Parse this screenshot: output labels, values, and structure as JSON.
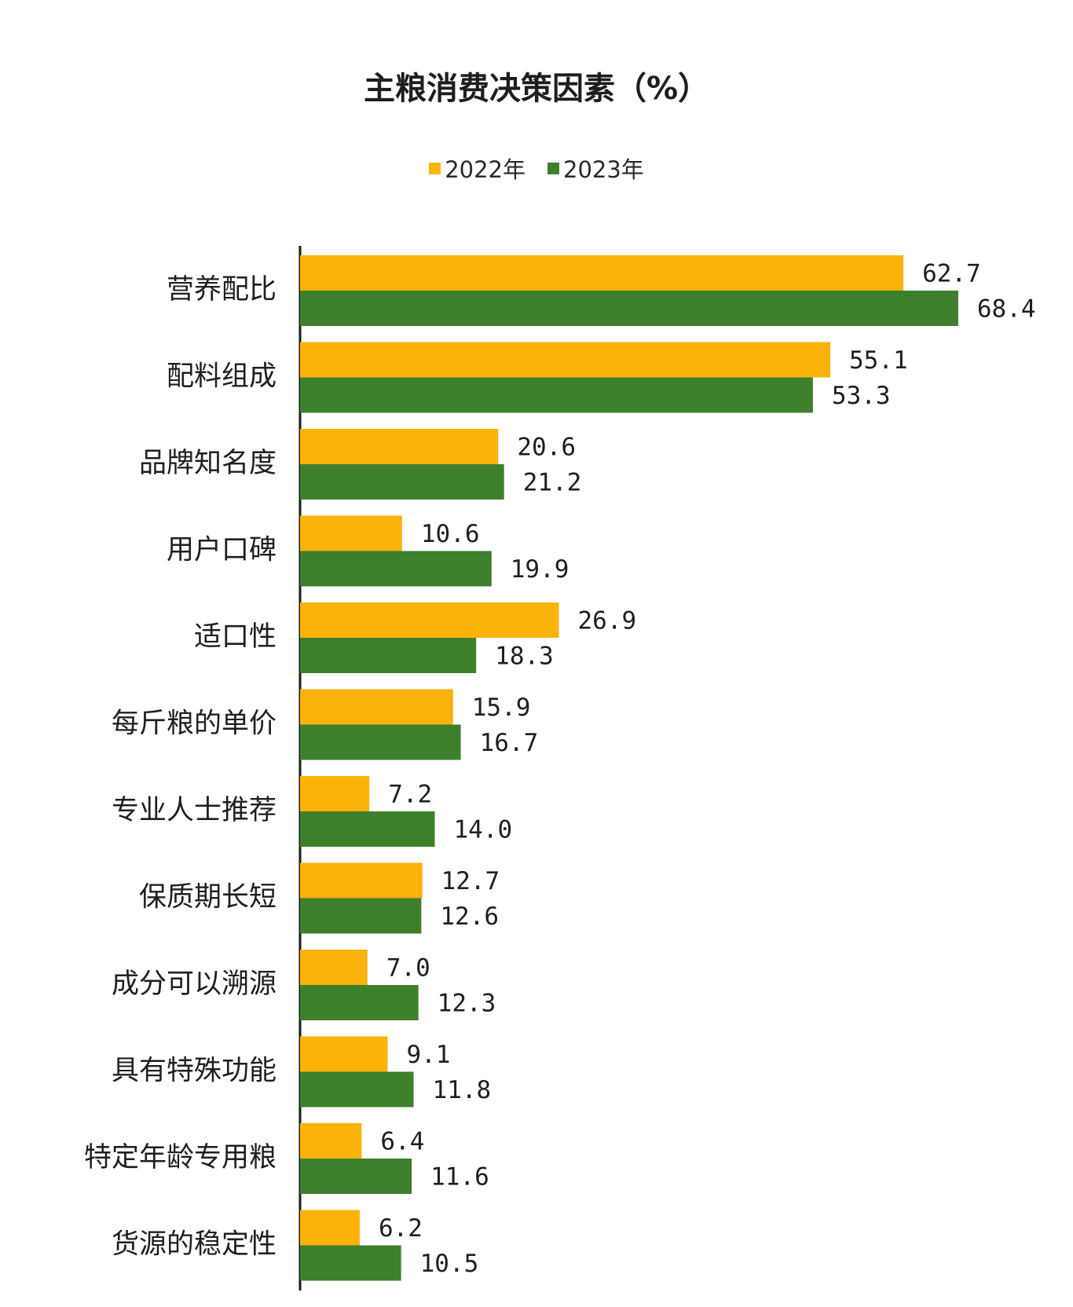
{
  "chart_data": {
    "type": "bar",
    "orientation": "horizontal",
    "title": "主粮消费决策因素（%）",
    "categories": [
      "营养配比",
      "配料组成",
      "品牌知名度",
      "用户口碑",
      "适口性",
      "每斤粮的单价",
      "专业人士推荐",
      "保质期长短",
      "成分可以溯源",
      "具有特殊功能",
      "特定年龄专用粮",
      "货源的稳定性"
    ],
    "series": [
      {
        "name": "2022年",
        "color": "#FBB20B",
        "values": [
          62.7,
          55.1,
          20.6,
          10.6,
          26.9,
          15.9,
          7.2,
          12.7,
          7.0,
          9.1,
          6.4,
          6.2
        ],
        "labels": [
          "62.7",
          "55.1",
          "20.6",
          "10.6",
          "26.9",
          "15.9",
          "7.2",
          "12.7",
          "7.0",
          "9.1",
          "6.4",
          "6.2"
        ]
      },
      {
        "name": "2023年",
        "color": "#3E7F2C",
        "values": [
          68.4,
          53.3,
          21.2,
          19.9,
          18.3,
          16.7,
          14.0,
          12.6,
          12.3,
          11.8,
          11.6,
          10.5
        ],
        "labels": [
          "68.4",
          "53.3",
          "21.2",
          "19.9",
          "18.3",
          "16.7",
          "14.0",
          "12.6",
          "12.3",
          "11.8",
          "11.6",
          "10.5"
        ]
      }
    ],
    "legend": "top-center",
    "grid": false,
    "xlim": [
      0,
      70
    ]
  }
}
